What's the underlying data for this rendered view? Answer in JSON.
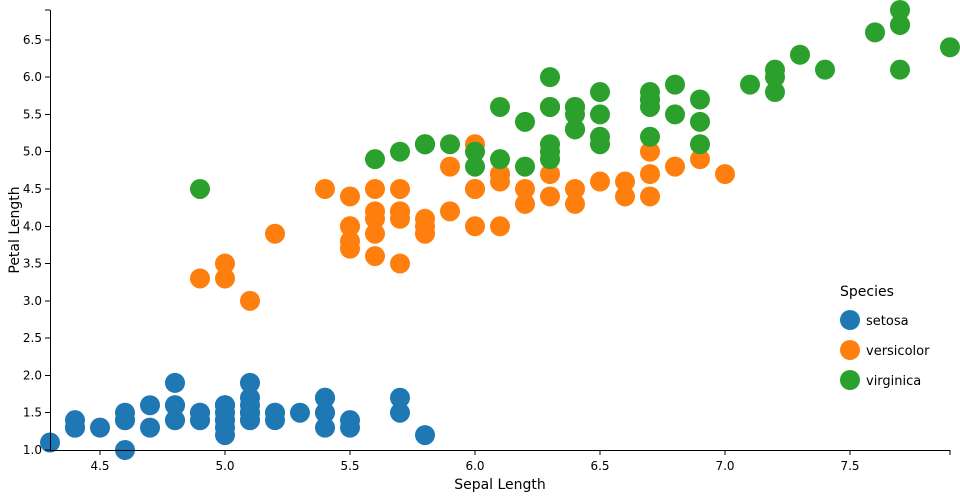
{
  "chart_data": {
    "type": "scatter",
    "title": "",
    "xlabel": "Sepal Length",
    "ylabel": "Petal Length",
    "xlim": [
      4.3,
      7.9
    ],
    "ylim": [
      1.0,
      6.9
    ],
    "grid": false,
    "legend_position": "right",
    "x_ticks": [
      "4.5",
      "5.0",
      "5.5",
      "6.0",
      "6.5",
      "7.0",
      "7.5"
    ],
    "y_ticks": [
      "1.0",
      "1.5",
      "2.0",
      "2.5",
      "3.0",
      "3.5",
      "4.0",
      "4.5",
      "5.0",
      "5.5",
      "6.0",
      "6.5"
    ],
    "legend_title": "Species",
    "series": [
      {
        "name": "setosa",
        "color": "#1f77b4",
        "points": [
          [
            5.1,
            1.4
          ],
          [
            4.9,
            1.4
          ],
          [
            4.7,
            1.3
          ],
          [
            4.6,
            1.5
          ],
          [
            5.0,
            1.4
          ],
          [
            5.4,
            1.7
          ],
          [
            4.6,
            1.4
          ],
          [
            5.0,
            1.5
          ],
          [
            4.4,
            1.4
          ],
          [
            4.9,
            1.5
          ],
          [
            5.4,
            1.5
          ],
          [
            4.8,
            1.6
          ],
          [
            4.8,
            1.4
          ],
          [
            4.3,
            1.1
          ],
          [
            5.8,
            1.2
          ],
          [
            5.7,
            1.5
          ],
          [
            5.4,
            1.3
          ],
          [
            5.1,
            1.4
          ],
          [
            5.7,
            1.7
          ],
          [
            5.1,
            1.5
          ],
          [
            5.4,
            1.7
          ],
          [
            5.1,
            1.5
          ],
          [
            4.6,
            1.0
          ],
          [
            5.1,
            1.7
          ],
          [
            4.8,
            1.9
          ],
          [
            5.0,
            1.6
          ],
          [
            5.0,
            1.6
          ],
          [
            5.2,
            1.5
          ],
          [
            5.2,
            1.4
          ],
          [
            4.7,
            1.6
          ],
          [
            4.8,
            1.6
          ],
          [
            5.4,
            1.5
          ],
          [
            5.2,
            1.5
          ],
          [
            5.5,
            1.4
          ],
          [
            4.9,
            1.5
          ],
          [
            5.0,
            1.2
          ],
          [
            5.5,
            1.3
          ],
          [
            4.9,
            1.4
          ],
          [
            4.4,
            1.3
          ],
          [
            5.1,
            1.5
          ],
          [
            5.0,
            1.3
          ],
          [
            4.5,
            1.3
          ],
          [
            4.4,
            1.3
          ],
          [
            5.0,
            1.6
          ],
          [
            5.1,
            1.9
          ],
          [
            4.8,
            1.4
          ],
          [
            5.1,
            1.6
          ],
          [
            4.6,
            1.4
          ],
          [
            5.3,
            1.5
          ],
          [
            5.0,
            1.4
          ]
        ]
      },
      {
        "name": "versicolor",
        "color": "#ff7f0e",
        "points": [
          [
            7.0,
            4.7
          ],
          [
            6.4,
            4.5
          ],
          [
            6.9,
            4.9
          ],
          [
            5.5,
            4.0
          ],
          [
            6.5,
            4.6
          ],
          [
            5.7,
            4.5
          ],
          [
            6.3,
            4.7
          ],
          [
            4.9,
            3.3
          ],
          [
            6.6,
            4.6
          ],
          [
            5.2,
            3.9
          ],
          [
            5.0,
            3.5
          ],
          [
            5.9,
            4.2
          ],
          [
            6.0,
            4.0
          ],
          [
            6.1,
            4.7
          ],
          [
            5.6,
            3.6
          ],
          [
            6.7,
            4.4
          ],
          [
            5.6,
            4.5
          ],
          [
            5.8,
            4.1
          ],
          [
            6.2,
            4.5
          ],
          [
            5.6,
            3.9
          ],
          [
            5.9,
            4.8
          ],
          [
            6.1,
            4.0
          ],
          [
            6.3,
            4.9
          ],
          [
            6.1,
            4.7
          ],
          [
            6.4,
            4.3
          ],
          [
            6.6,
            4.4
          ],
          [
            6.8,
            4.8
          ],
          [
            6.7,
            5.0
          ],
          [
            6.0,
            4.5
          ],
          [
            5.7,
            3.5
          ],
          [
            5.5,
            3.8
          ],
          [
            5.5,
            3.7
          ],
          [
            5.8,
            3.9
          ],
          [
            6.0,
            5.1
          ],
          [
            5.4,
            4.5
          ],
          [
            6.0,
            4.5
          ],
          [
            6.7,
            4.7
          ],
          [
            6.3,
            4.4
          ],
          [
            5.6,
            4.1
          ],
          [
            5.5,
            4.0
          ],
          [
            5.5,
            4.4
          ],
          [
            6.1,
            4.6
          ],
          [
            5.8,
            4.0
          ],
          [
            5.0,
            3.3
          ],
          [
            5.6,
            4.2
          ],
          [
            5.7,
            4.2
          ],
          [
            5.7,
            4.2
          ],
          [
            6.2,
            4.3
          ],
          [
            5.1,
            3.0
          ],
          [
            5.7,
            4.1
          ]
        ]
      },
      {
        "name": "virginica",
        "color": "#2ca02c",
        "points": [
          [
            6.3,
            6.0
          ],
          [
            5.8,
            5.1
          ],
          [
            7.1,
            5.9
          ],
          [
            6.3,
            5.6
          ],
          [
            6.5,
            5.8
          ],
          [
            7.6,
            6.6
          ],
          [
            4.9,
            4.5
          ],
          [
            7.3,
            6.3
          ],
          [
            6.7,
            5.8
          ],
          [
            7.2,
            6.1
          ],
          [
            6.5,
            5.1
          ],
          [
            6.4,
            5.3
          ],
          [
            6.8,
            5.5
          ],
          [
            5.7,
            5.0
          ],
          [
            5.8,
            5.1
          ],
          [
            6.4,
            5.3
          ],
          [
            6.5,
            5.5
          ],
          [
            7.7,
            6.7
          ],
          [
            7.7,
            6.9
          ],
          [
            6.0,
            5.0
          ],
          [
            6.9,
            5.7
          ],
          [
            5.6,
            4.9
          ],
          [
            7.7,
            6.7
          ],
          [
            6.3,
            4.9
          ],
          [
            6.7,
            5.7
          ],
          [
            7.2,
            6.0
          ],
          [
            6.2,
            4.8
          ],
          [
            6.1,
            4.9
          ],
          [
            6.4,
            5.6
          ],
          [
            7.2,
            5.8
          ],
          [
            7.4,
            6.1
          ],
          [
            7.9,
            6.4
          ],
          [
            6.4,
            5.6
          ],
          [
            6.3,
            5.1
          ],
          [
            6.1,
            5.6
          ],
          [
            7.7,
            6.1
          ],
          [
            6.3,
            5.6
          ],
          [
            6.4,
            5.5
          ],
          [
            6.0,
            4.8
          ],
          [
            6.9,
            5.4
          ],
          [
            6.7,
            5.6
          ],
          [
            6.9,
            5.1
          ],
          [
            5.8,
            5.1
          ],
          [
            6.8,
            5.9
          ],
          [
            6.7,
            5.7
          ],
          [
            6.7,
            5.2
          ],
          [
            6.3,
            5.0
          ],
          [
            6.5,
            5.2
          ],
          [
            6.2,
            5.4
          ],
          [
            5.9,
            5.1
          ]
        ]
      }
    ]
  }
}
